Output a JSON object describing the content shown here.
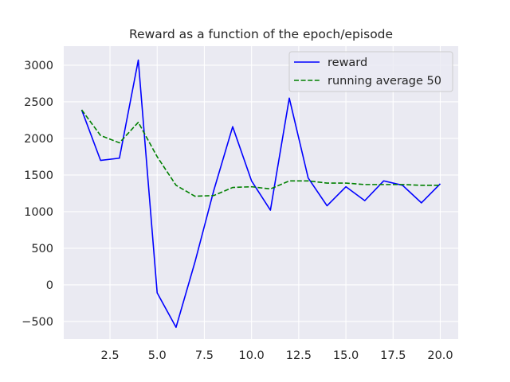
{
  "chart_data": {
    "type": "line",
    "title": "Reward as a function of the epoch/episode",
    "xlabel": "",
    "ylabel": "",
    "xlim": [
      0.05,
      20.95
    ],
    "ylim": [
      -740,
      3260
    ],
    "xticks": [
      2.5,
      5.0,
      7.5,
      10.0,
      12.5,
      15.0,
      17.5,
      20.0
    ],
    "xtick_labels": [
      "2.5",
      "5.0",
      "7.5",
      "10.0",
      "12.5",
      "15.0",
      "17.5",
      "20.0"
    ],
    "yticks": [
      -500,
      0,
      500,
      1000,
      1500,
      2000,
      2500,
      3000
    ],
    "ytick_labels": [
      "−500",
      "0",
      "500",
      "1000",
      "1500",
      "2000",
      "2500",
      "3000"
    ],
    "grid": true,
    "legend_position": "top-right",
    "x": [
      1,
      2,
      3,
      4,
      5,
      6,
      7,
      8,
      9,
      10,
      11,
      12,
      13,
      14,
      15,
      16,
      17,
      18,
      19,
      20
    ],
    "series": [
      {
        "name": "reward",
        "color": "#0000ff",
        "style": "solid",
        "values": [
          2390,
          1700,
          1730,
          3070,
          -110,
          -580,
          310,
          1290,
          2160,
          1420,
          1020,
          2550,
          1460,
          1080,
          1340,
          1150,
          1420,
          1360,
          1120,
          1380
        ]
      },
      {
        "name": "running average 50",
        "color": "#008000",
        "style": "dashed",
        "values": [
          2390,
          2040,
          1940,
          2220,
          1750,
          1360,
          1210,
          1220,
          1330,
          1340,
          1310,
          1420,
          1420,
          1390,
          1390,
          1370,
          1370,
          1370,
          1360,
          1360
        ]
      }
    ]
  }
}
